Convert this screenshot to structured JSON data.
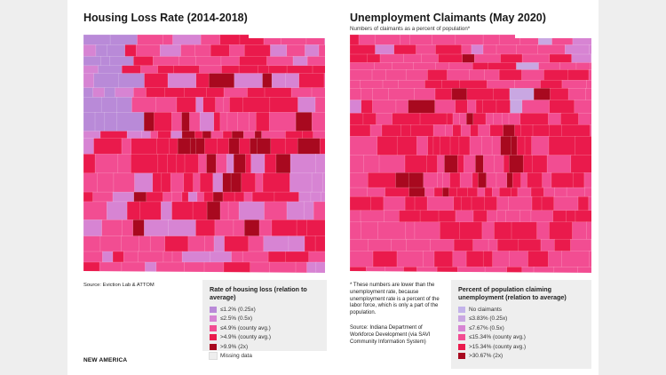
{
  "left": {
    "title": "Housing Loss Rate (2014-2018)",
    "source": "Source: Eviction Lab & ATTOM",
    "legend": {
      "title": "Rate of housing loss (relation to average)",
      "items": [
        {
          "label": "≤1.2% (0.25x)",
          "color": "#b98ad8"
        },
        {
          "label": "≤2.5% (0.5x)",
          "color": "#d784d3"
        },
        {
          "label": "≤4.9% (county avg.)",
          "color": "#f24d92"
        },
        {
          "label": ">4.9% (county avg.)",
          "color": "#ea1a4c"
        },
        {
          "label": ">9.9% (2x)",
          "color": "#a8091f"
        },
        {
          "label": "Missing data",
          "color": "#eeeeee"
        }
      ]
    }
  },
  "right": {
    "title": "Unemployment Claimants (May 2020)",
    "subtitle": "Numbers of claimants as a percent of population*",
    "note_text": "* These numbers are lower than the unemployment rate, because unemployment rate is a percent of the labor force, which is only a part of the population.",
    "source": "Source: Indiana Department of Workforce Development (via SAVI Community Information System)",
    "legend": {
      "title": "Percent of population claiming unemployment (relation to average)",
      "items": [
        {
          "label": "No claimants",
          "color": "#c3b3ea"
        },
        {
          "label": "≤3.83% (0.25x)",
          "color": "#c9a7e2"
        },
        {
          "label": "≤7.67% (0.5x)",
          "color": "#d784d3"
        },
        {
          "label": "≤15.34% (county avg.)",
          "color": "#f24d92"
        },
        {
          "label": ">15.34% (county avg.)",
          "color": "#ea1a4c"
        },
        {
          "label": ">30.67% (2x)",
          "color": "#a8091f"
        }
      ]
    }
  },
  "brand": "NEW AMERICA"
}
